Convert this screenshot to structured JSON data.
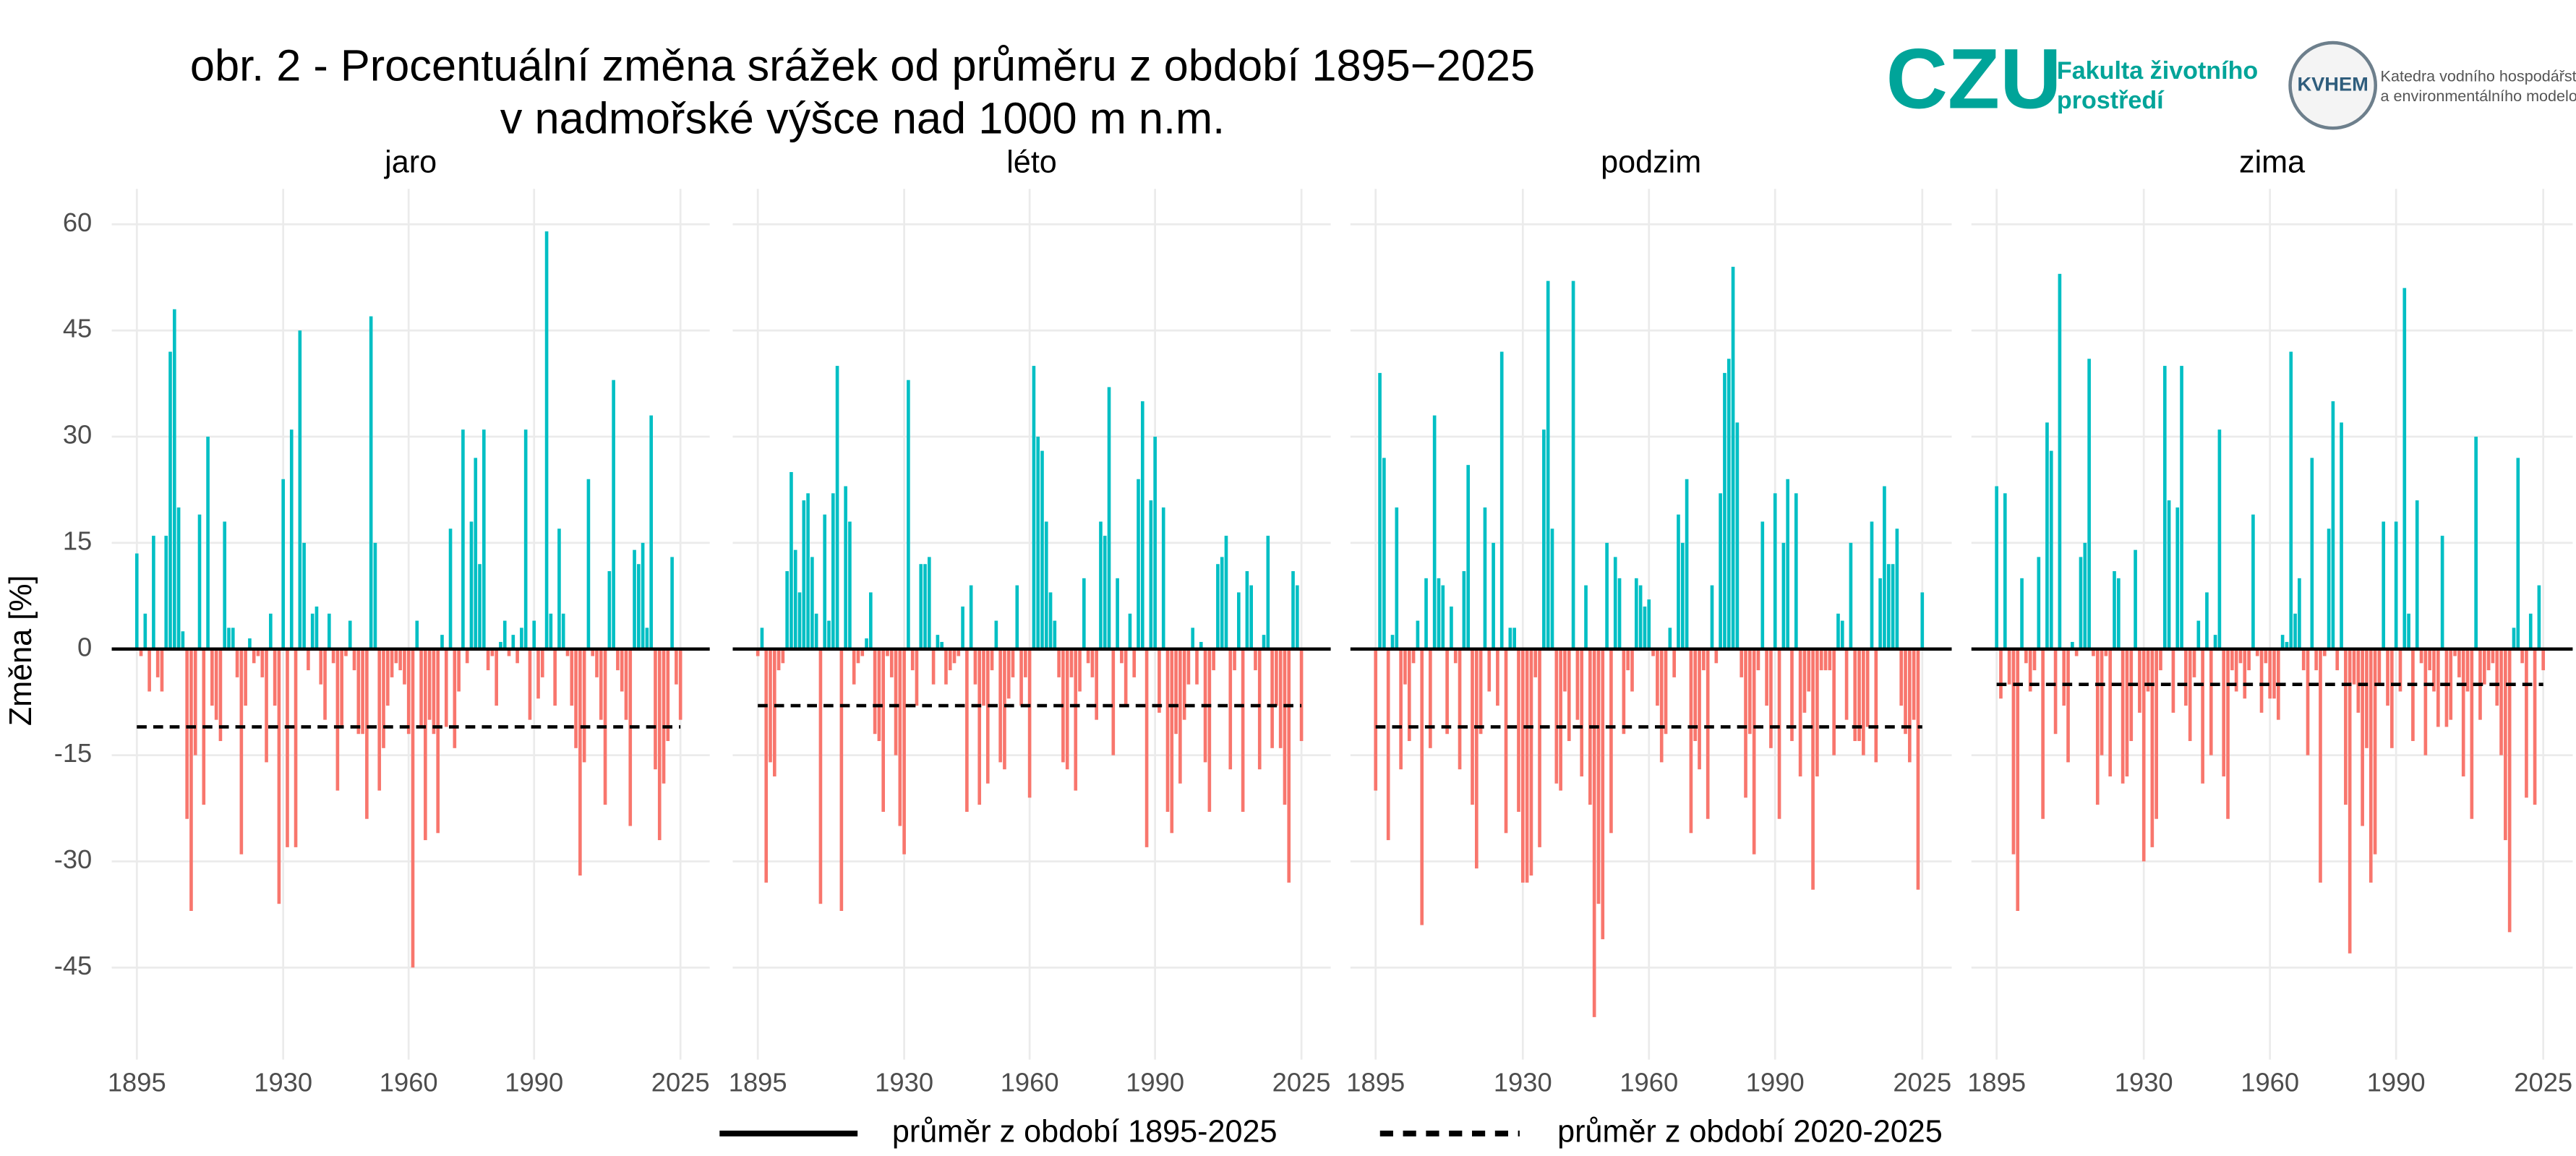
{
  "title": [
    "obr. 2 - Procentuální změna srážek od průměru z období 1895−2025",
    "v nadmořské výšce nad 1000 m n.m."
  ],
  "y_axis_label": "Změna [%]",
  "legend": [
    {
      "label": "průměr z období 1895-2025",
      "style": "solid"
    },
    {
      "label": "průměr z období 2020-2025",
      "style": "dashed"
    }
  ],
  "logos": {
    "czu": "CZU",
    "faculty": [
      "Fakulta životního",
      "prostředí"
    ],
    "kvhem": "KVHEM",
    "department": [
      "Katedra vodního hospodářství",
      "a environmentálního modelování"
    ]
  },
  "chart_data": [
    {
      "type": "bar",
      "title": "jaro",
      "positive_color": "#00bfc4",
      "negative_color": "#f8766d",
      "grid": true,
      "xlim": [
        1889,
        2032
      ],
      "xticks": [
        1895,
        1930,
        1960,
        1990,
        2025
      ],
      "ylim": [
        -58,
        65
      ],
      "yticks": [
        -45,
        -30,
        -15,
        0,
        15,
        30,
        45,
        60
      ],
      "reference_lines": [
        {
          "value": 0,
          "style": "solid"
        },
        {
          "value": -11,
          "style": "dashed"
        }
      ],
      "x": [
        1895,
        1896,
        1897,
        1898,
        1899,
        1900,
        1901,
        1902,
        1903,
        1904,
        1905,
        1906,
        1907,
        1908,
        1909,
        1910,
        1911,
        1912,
        1913,
        1914,
        1915,
        1916,
        1917,
        1918,
        1919,
        1920,
        1921,
        1922,
        1923,
        1924,
        1925,
        1926,
        1927,
        1928,
        1929,
        1930,
        1931,
        1932,
        1933,
        1934,
        1935,
        1936,
        1937,
        1938,
        1939,
        1940,
        1941,
        1942,
        1943,
        1944,
        1945,
        1946,
        1947,
        1948,
        1949,
        1950,
        1951,
        1952,
        1953,
        1954,
        1955,
        1956,
        1957,
        1958,
        1959,
        1960,
        1961,
        1962,
        1963,
        1964,
        1965,
        1966,
        1967,
        1968,
        1969,
        1970,
        1971,
        1972,
        1973,
        1974,
        1975,
        1976,
        1977,
        1978,
        1979,
        1980,
        1981,
        1982,
        1983,
        1984,
        1985,
        1986,
        1987,
        1988,
        1989,
        1990,
        1991,
        1992,
        1993,
        1994,
        1995,
        1996,
        1997,
        1998,
        1999,
        2000,
        2001,
        2002,
        2003,
        2004,
        2005,
        2006,
        2007,
        2008,
        2009,
        2010,
        2011,
        2012,
        2013,
        2014,
        2015,
        2016,
        2017,
        2018,
        2019,
        2020,
        2021,
        2022,
        2023,
        2024,
        2025
      ],
      "values": [
        13.5,
        -1,
        5,
        -6,
        16,
        -4,
        -6,
        16,
        42,
        48,
        20,
        2.5,
        -24,
        -37,
        -15,
        19,
        -22,
        30,
        -8,
        -10,
        -13,
        18,
        3,
        3,
        -4,
        -29,
        -8,
        1.5,
        -2,
        -1,
        -4,
        -16,
        5,
        -8,
        -36,
        24,
        -28,
        31,
        -28,
        45,
        15,
        -3,
        5,
        6,
        -5,
        -10,
        5,
        -2,
        -20,
        -11,
        -1,
        4,
        -3,
        -12,
        -12,
        -24,
        47,
        15,
        -20,
        -14,
        -8,
        -4,
        -2,
        -3,
        -5,
        -12,
        -45,
        4,
        -11,
        -27,
        -10,
        -12,
        -26,
        2,
        -11,
        17,
        -14,
        -6,
        31,
        -2,
        18,
        27,
        12,
        31,
        -3,
        -1,
        -8,
        1,
        4,
        -1,
        2,
        -2,
        3,
        31,
        -10,
        4,
        -7,
        -4,
        59,
        5,
        -8,
        17,
        5,
        -1,
        -8,
        -14,
        -32,
        -16,
        24,
        -1,
        -4,
        -10,
        -22,
        11,
        38,
        -3,
        -6,
        -10,
        -25,
        14,
        12,
        15,
        3,
        33,
        -17,
        -27,
        -19,
        -13,
        13,
        -5,
        -10
      ]
    },
    {
      "type": "bar",
      "title": "léto",
      "positive_color": "#00bfc4",
      "negative_color": "#f8766d",
      "grid": true,
      "xlim": [
        1889,
        2032
      ],
      "xticks": [
        1895,
        1930,
        1960,
        1990,
        2025
      ],
      "ylim": [
        -58,
        65
      ],
      "yticks": [
        -45,
        -30,
        -15,
        0,
        15,
        30,
        45,
        60
      ],
      "reference_lines": [
        {
          "value": 0,
          "style": "solid"
        },
        {
          "value": -8,
          "style": "dashed"
        }
      ],
      "x": [
        1895,
        1896,
        1897,
        1898,
        1899,
        1900,
        1901,
        1902,
        1903,
        1904,
        1905,
        1906,
        1907,
        1908,
        1909,
        1910,
        1911,
        1912,
        1913,
        1914,
        1915,
        1916,
        1917,
        1918,
        1919,
        1920,
        1921,
        1922,
        1923,
        1924,
        1925,
        1926,
        1927,
        1928,
        1929,
        1930,
        1931,
        1932,
        1933,
        1934,
        1935,
        1936,
        1937,
        1938,
        1939,
        1940,
        1941,
        1942,
        1943,
        1944,
        1945,
        1946,
        1947,
        1948,
        1949,
        1950,
        1951,
        1952,
        1953,
        1954,
        1955,
        1956,
        1957,
        1958,
        1959,
        1960,
        1961,
        1962,
        1963,
        1964,
        1965,
        1966,
        1967,
        1968,
        1969,
        1970,
        1971,
        1972,
        1973,
        1974,
        1975,
        1976,
        1977,
        1978,
        1979,
        1980,
        1981,
        1982,
        1983,
        1984,
        1985,
        1986,
        1987,
        1988,
        1989,
        1990,
        1991,
        1992,
        1993,
        1994,
        1995,
        1996,
        1997,
        1998,
        1999,
        2000,
        2001,
        2002,
        2003,
        2004,
        2005,
        2006,
        2007,
        2008,
        2009,
        2010,
        2011,
        2012,
        2013,
        2014,
        2015,
        2016,
        2017,
        2018,
        2019,
        2020,
        2021,
        2022,
        2023,
        2024,
        2025
      ],
      "values": [
        -1,
        3,
        -33,
        -16,
        -18,
        -3,
        -2,
        11,
        25,
        14,
        8,
        21,
        22,
        13,
        5,
        -36,
        19,
        4,
        22,
        40,
        -37,
        23,
        18,
        -5,
        -2,
        -1,
        1.5,
        8,
        -12,
        -13,
        -23,
        -1,
        -4,
        -15,
        -25,
        -29,
        38,
        -3,
        -8,
        12,
        12,
        13,
        -5,
        2,
        1,
        -5,
        -3,
        -2,
        -1,
        6,
        -23,
        9,
        -5,
        -22,
        -8,
        -19,
        -3,
        4,
        -16,
        -17,
        -7,
        -4,
        9,
        -8,
        -4,
        -21,
        40,
        30,
        28,
        18,
        8,
        4,
        -4,
        -16,
        -17,
        -4,
        -20,
        -6,
        10,
        -2,
        -4,
        -10,
        18,
        16,
        37,
        -15,
        10,
        -2,
        -8,
        5,
        -4,
        24,
        35,
        -28,
        21,
        30,
        -9,
        20,
        -23,
        -26,
        -12,
        -19,
        -10,
        -5,
        3,
        -5,
        1,
        -16,
        -23,
        -3,
        12,
        13,
        16,
        -17,
        -3,
        8,
        -23,
        11,
        9,
        -3,
        -17,
        2,
        16,
        -14,
        -8,
        -14,
        -22,
        -33,
        11,
        9,
        -13
      ]
    },
    {
      "type": "bar",
      "title": "podzim",
      "positive_color": "#00bfc4",
      "negative_color": "#f8766d",
      "grid": true,
      "xlim": [
        1889,
        2032
      ],
      "xticks": [
        1895,
        1930,
        1960,
        1990,
        2025
      ],
      "ylim": [
        -58,
        65
      ],
      "yticks": [
        -45,
        -30,
        -15,
        0,
        15,
        30,
        45,
        60
      ],
      "reference_lines": [
        {
          "value": 0,
          "style": "solid"
        },
        {
          "value": -11,
          "style": "dashed"
        }
      ],
      "x": [
        1895,
        1896,
        1897,
        1898,
        1899,
        1900,
        1901,
        1902,
        1903,
        1904,
        1905,
        1906,
        1907,
        1908,
        1909,
        1910,
        1911,
        1912,
        1913,
        1914,
        1915,
        1916,
        1917,
        1918,
        1919,
        1920,
        1921,
        1922,
        1923,
        1924,
        1925,
        1926,
        1927,
        1928,
        1929,
        1930,
        1931,
        1932,
        1933,
        1934,
        1935,
        1936,
        1937,
        1938,
        1939,
        1940,
        1941,
        1942,
        1943,
        1944,
        1945,
        1946,
        1947,
        1948,
        1949,
        1950,
        1951,
        1952,
        1953,
        1954,
        1955,
        1956,
        1957,
        1958,
        1959,
        1960,
        1961,
        1962,
        1963,
        1964,
        1965,
        1966,
        1967,
        1968,
        1969,
        1970,
        1971,
        1972,
        1973,
        1974,
        1975,
        1976,
        1977,
        1978,
        1979,
        1980,
        1981,
        1982,
        1983,
        1984,
        1985,
        1986,
        1987,
        1988,
        1989,
        1990,
        1991,
        1992,
        1993,
        1994,
        1995,
        1996,
        1997,
        1998,
        1999,
        2000,
        2001,
        2002,
        2003,
        2004,
        2005,
        2006,
        2007,
        2008,
        2009,
        2010,
        2011,
        2012,
        2013,
        2014,
        2015,
        2016,
        2017,
        2018,
        2019,
        2020,
        2021,
        2022,
        2023,
        2024,
        2025
      ],
      "values": [
        -20,
        39,
        27,
        -27,
        2,
        20,
        -17,
        -5,
        -13,
        -2,
        4,
        -39,
        10,
        -14,
        33,
        10,
        9,
        -12,
        6,
        -2,
        -17,
        11,
        26,
        -22,
        -31,
        -12,
        20,
        -6,
        15,
        -8,
        42,
        -26,
        3,
        3,
        -23,
        -33,
        -33,
        -32,
        -4,
        -28,
        31,
        52,
        17,
        -19,
        -20,
        -6,
        -13,
        52,
        -10,
        -18,
        9,
        -22,
        -52,
        -36,
        -41,
        15,
        -26,
        13,
        10,
        -12,
        -3,
        -6,
        10,
        9,
        6,
        7,
        -1,
        -8,
        -16,
        -12,
        3,
        -4,
        19,
        15,
        24,
        -26,
        -13,
        -17,
        -3,
        -24,
        9,
        -2,
        22,
        39,
        41,
        54,
        32,
        -4,
        -21,
        -12,
        -29,
        -3,
        18,
        -8,
        -14,
        22,
        -24,
        15,
        24,
        -13,
        22,
        -18,
        -9,
        -6,
        -34,
        -18,
        -3,
        -3,
        -3,
        -15,
        5,
        4,
        -10,
        15,
        -13,
        -13,
        -15,
        -11,
        18,
        -16,
        10,
        23,
        12,
        12,
        17,
        -8,
        -12,
        -16,
        -10,
        -34,
        8
      ]
    },
    {
      "type": "bar",
      "title": "zima",
      "positive_color": "#00bfc4",
      "negative_color": "#f8766d",
      "grid": true,
      "xlim": [
        1889,
        2032
      ],
      "xticks": [
        1895,
        1930,
        1960,
        1990,
        2025
      ],
      "ylim": [
        -58,
        65
      ],
      "yticks": [
        -45,
        -30,
        -15,
        0,
        15,
        30,
        45,
        60
      ],
      "reference_lines": [
        {
          "value": 0,
          "style": "solid"
        },
        {
          "value": -5,
          "style": "dashed"
        }
      ],
      "x": [
        1895,
        1896,
        1897,
        1898,
        1899,
        1900,
        1901,
        1902,
        1903,
        1904,
        1905,
        1906,
        1907,
        1908,
        1909,
        1910,
        1911,
        1912,
        1913,
        1914,
        1915,
        1916,
        1917,
        1918,
        1919,
        1920,
        1921,
        1922,
        1923,
        1924,
        1925,
        1926,
        1927,
        1928,
        1929,
        1930,
        1931,
        1932,
        1933,
        1934,
        1935,
        1936,
        1937,
        1938,
        1939,
        1940,
        1941,
        1942,
        1943,
        1944,
        1945,
        1946,
        1947,
        1948,
        1949,
        1950,
        1951,
        1952,
        1953,
        1954,
        1955,
        1956,
        1957,
        1958,
        1959,
        1960,
        1961,
        1962,
        1963,
        1964,
        1965,
        1966,
        1967,
        1968,
        1969,
        1970,
        1971,
        1972,
        1973,
        1974,
        1975,
        1976,
        1977,
        1978,
        1979,
        1980,
        1981,
        1982,
        1983,
        1984,
        1985,
        1986,
        1987,
        1988,
        1989,
        1990,
        1991,
        1992,
        1993,
        1994,
        1995,
        1996,
        1997,
        1998,
        1999,
        2000,
        2001,
        2002,
        2003,
        2004,
        2005,
        2006,
        2007,
        2008,
        2009,
        2010,
        2011,
        2012,
        2013,
        2014,
        2015,
        2016,
        2017,
        2018,
        2019,
        2020,
        2021,
        2022,
        2023,
        2024,
        2025
      ],
      "values": [
        23,
        -7,
        22,
        -5,
        -29,
        -37,
        10,
        -2,
        -6,
        -3,
        13,
        -24,
        32,
        28,
        -12,
        53,
        -8,
        -16,
        1,
        -1,
        13,
        15,
        41,
        -1,
        -22,
        -15,
        -1,
        -18,
        11,
        10,
        -19,
        -18,
        -13,
        14,
        -9,
        -30,
        -6,
        -28,
        -24,
        -3,
        40,
        21,
        -9,
        20,
        40,
        -8,
        -13,
        -4,
        4,
        -19,
        8,
        -15,
        2,
        31,
        -18,
        -24,
        -3,
        -6,
        -2,
        -7,
        -3,
        19,
        -1,
        -9,
        -2,
        -7,
        -7,
        -10,
        2,
        1,
        42,
        5,
        10,
        -3,
        -15,
        27,
        -3,
        -33,
        -1,
        17,
        35,
        -3,
        32,
        -22,
        -43,
        -5,
        -9,
        -25,
        -14,
        -33,
        -29,
        -5,
        18,
        -8,
        -14,
        18,
        -6,
        51,
        5,
        -13,
        21,
        -2,
        -15,
        -3,
        -6,
        -11,
        16,
        -11,
        -10,
        -1,
        -4,
        -18,
        -6,
        -24,
        30,
        -10,
        -5,
        -3,
        -2,
        -8,
        -15,
        -27,
        -40,
        3,
        27,
        -2,
        -21,
        5,
        -22,
        9,
        -3
      ]
    }
  ]
}
